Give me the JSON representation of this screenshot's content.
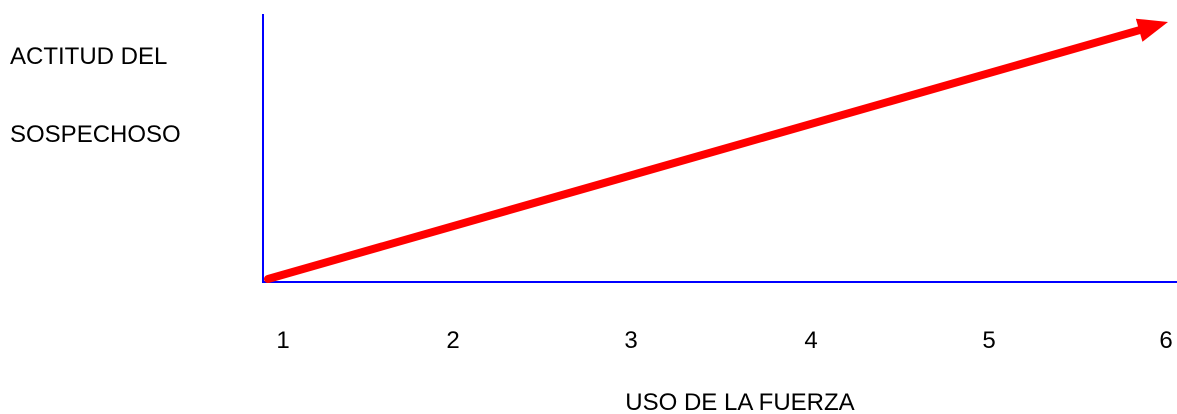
{
  "chart_data": {
    "type": "line",
    "title": "",
    "xlabel": "USO DE LA FUERZA",
    "ylabel_lines": [
      "ACTITUD DEL",
      "SOSPECHOSO"
    ],
    "categories": [
      "1",
      "2",
      "3",
      "4",
      "5",
      "6"
    ],
    "series": [
      {
        "color": "#ff0000",
        "x": [
          1,
          6
        ],
        "y": [
          0,
          1
        ],
        "arrow_end": true
      }
    ],
    "xlim": [
      1,
      6
    ],
    "ylim": [
      0,
      1
    ],
    "axis_color": "#0000ff",
    "grid": false,
    "legend": "none"
  }
}
